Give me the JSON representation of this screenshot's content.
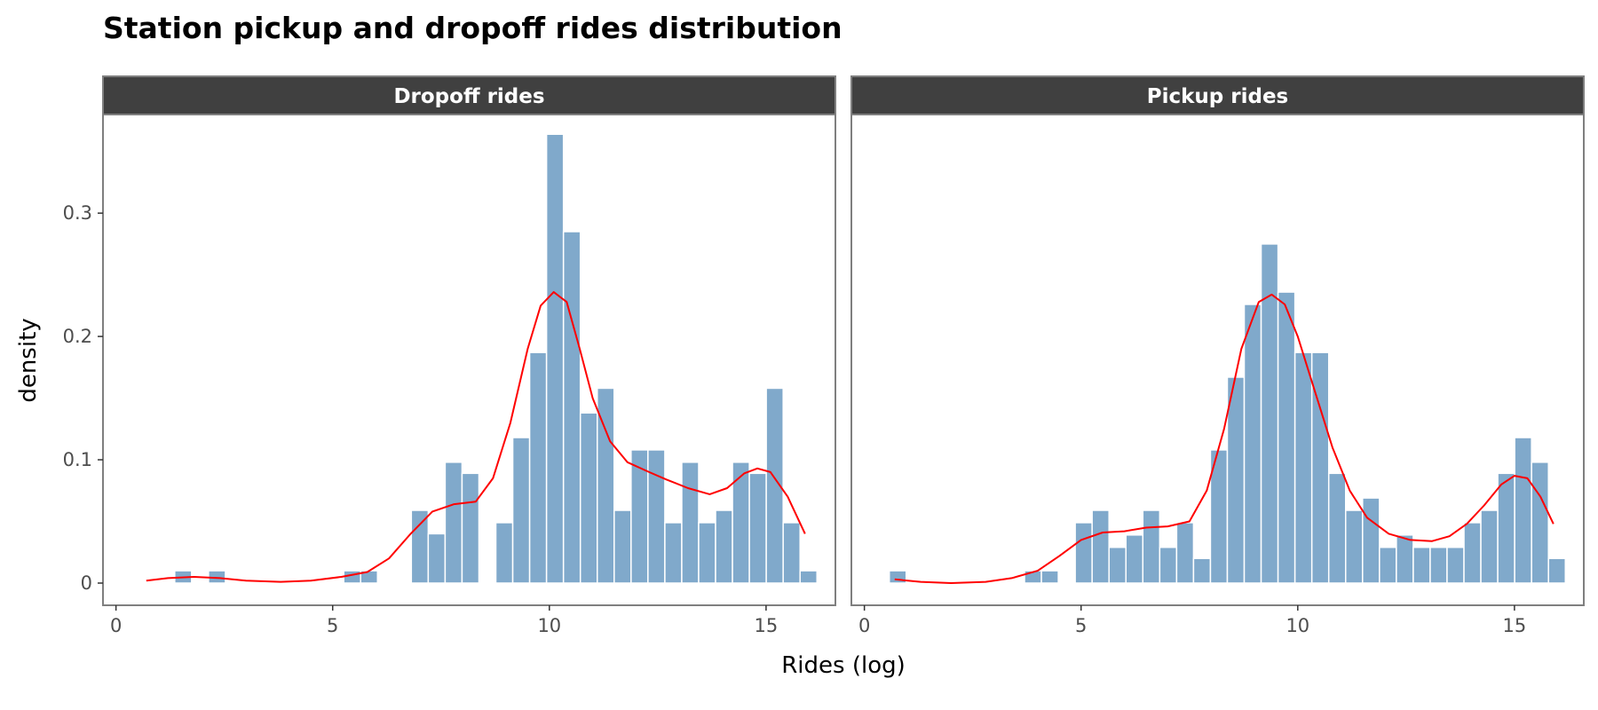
{
  "title": "Station pickup and dropoff rides distribution",
  "colors": {
    "bar_fill": "#80a9cb",
    "bar_stroke": "#ffffff",
    "density_line": "#ff0000",
    "strip_fill": "#404040",
    "strip_text": "#ffffff",
    "panel_border": "#7f7f7f"
  },
  "chart_data": {
    "type": "bar",
    "subtype": "histogram-with-density-facets",
    "xlabel": "Rides (log)",
    "ylabel": "density",
    "xlim": [
      -0.3,
      16.6
    ],
    "ylim": [
      -0.018,
      0.38
    ],
    "x_ticks": [
      0,
      5,
      10,
      15
    ],
    "x_tick_labels": [
      "0",
      "5",
      "10",
      "15"
    ],
    "y_ticks": [
      0,
      0.1,
      0.2,
      0.3
    ],
    "y_tick_labels": [
      "0",
      "0.1",
      "0.2",
      "0.3"
    ],
    "grid": false,
    "bin_width": 0.39,
    "facets": [
      {
        "label": "Dropoff rides",
        "bins": [
          {
            "x": 1.55,
            "density": 0.01
          },
          {
            "x": 2.33,
            "density": 0.01
          },
          {
            "x": 5.45,
            "density": 0.01
          },
          {
            "x": 5.84,
            "density": 0.01
          },
          {
            "x": 7.01,
            "density": 0.059
          },
          {
            "x": 7.4,
            "density": 0.04
          },
          {
            "x": 7.79,
            "density": 0.098
          },
          {
            "x": 8.18,
            "density": 0.089
          },
          {
            "x": 8.96,
            "density": 0.049
          },
          {
            "x": 9.35,
            "density": 0.118
          },
          {
            "x": 9.74,
            "density": 0.187
          },
          {
            "x": 10.13,
            "density": 0.364
          },
          {
            "x": 10.52,
            "density": 0.285
          },
          {
            "x": 10.91,
            "density": 0.138
          },
          {
            "x": 11.3,
            "density": 0.158
          },
          {
            "x": 11.69,
            "density": 0.059
          },
          {
            "x": 12.08,
            "density": 0.108
          },
          {
            "x": 12.47,
            "density": 0.108
          },
          {
            "x": 12.86,
            "density": 0.049
          },
          {
            "x": 13.25,
            "density": 0.098
          },
          {
            "x": 13.64,
            "density": 0.049
          },
          {
            "x": 14.03,
            "density": 0.059
          },
          {
            "x": 14.42,
            "density": 0.098
          },
          {
            "x": 14.81,
            "density": 0.089
          },
          {
            "x": 15.2,
            "density": 0.158
          },
          {
            "x": 15.59,
            "density": 0.049
          },
          {
            "x": 15.98,
            "density": 0.01
          }
        ],
        "density_curve": [
          [
            0.7,
            0.002
          ],
          [
            1.2,
            0.004
          ],
          [
            1.8,
            0.005
          ],
          [
            2.4,
            0.004
          ],
          [
            3.0,
            0.002
          ],
          [
            3.8,
            0.001
          ],
          [
            4.5,
            0.002
          ],
          [
            5.2,
            0.005
          ],
          [
            5.8,
            0.009
          ],
          [
            6.3,
            0.02
          ],
          [
            6.8,
            0.04
          ],
          [
            7.3,
            0.058
          ],
          [
            7.8,
            0.064
          ],
          [
            8.3,
            0.066
          ],
          [
            8.7,
            0.085
          ],
          [
            9.1,
            0.13
          ],
          [
            9.5,
            0.19
          ],
          [
            9.8,
            0.225
          ],
          [
            10.1,
            0.236
          ],
          [
            10.4,
            0.228
          ],
          [
            10.7,
            0.19
          ],
          [
            11.0,
            0.15
          ],
          [
            11.4,
            0.115
          ],
          [
            11.8,
            0.098
          ],
          [
            12.3,
            0.09
          ],
          [
            12.7,
            0.084
          ],
          [
            13.2,
            0.077
          ],
          [
            13.7,
            0.072
          ],
          [
            14.1,
            0.077
          ],
          [
            14.5,
            0.089
          ],
          [
            14.8,
            0.093
          ],
          [
            15.1,
            0.09
          ],
          [
            15.5,
            0.07
          ],
          [
            15.9,
            0.04
          ]
        ]
      },
      {
        "label": "Pickup rides",
        "bins": [
          {
            "x": 0.77,
            "density": 0.01
          },
          {
            "x": 3.89,
            "density": 0.01
          },
          {
            "x": 4.28,
            "density": 0.01
          },
          {
            "x": 5.06,
            "density": 0.049
          },
          {
            "x": 5.45,
            "density": 0.059
          },
          {
            "x": 5.84,
            "density": 0.029
          },
          {
            "x": 6.23,
            "density": 0.039
          },
          {
            "x": 6.62,
            "density": 0.059
          },
          {
            "x": 7.01,
            "density": 0.029
          },
          {
            "x": 7.4,
            "density": 0.049
          },
          {
            "x": 7.79,
            "density": 0.02
          },
          {
            "x": 8.18,
            "density": 0.108
          },
          {
            "x": 8.57,
            "density": 0.167
          },
          {
            "x": 8.96,
            "density": 0.226
          },
          {
            "x": 9.35,
            "density": 0.275
          },
          {
            "x": 9.74,
            "density": 0.236
          },
          {
            "x": 10.13,
            "density": 0.187
          },
          {
            "x": 10.52,
            "density": 0.187
          },
          {
            "x": 10.91,
            "density": 0.089
          },
          {
            "x": 11.3,
            "density": 0.059
          },
          {
            "x": 11.69,
            "density": 0.069
          },
          {
            "x": 12.08,
            "density": 0.029
          },
          {
            "x": 12.47,
            "density": 0.039
          },
          {
            "x": 12.86,
            "density": 0.029
          },
          {
            "x": 13.25,
            "density": 0.029
          },
          {
            "x": 13.64,
            "density": 0.029
          },
          {
            "x": 14.03,
            "density": 0.049
          },
          {
            "x": 14.42,
            "density": 0.059
          },
          {
            "x": 14.81,
            "density": 0.089
          },
          {
            "x": 15.2,
            "density": 0.118
          },
          {
            "x": 15.59,
            "density": 0.098
          },
          {
            "x": 15.98,
            "density": 0.02
          }
        ],
        "density_curve": [
          [
            0.7,
            0.003
          ],
          [
            1.3,
            0.001
          ],
          [
            2.0,
            0.0
          ],
          [
            2.8,
            0.001
          ],
          [
            3.4,
            0.004
          ],
          [
            4.0,
            0.01
          ],
          [
            4.5,
            0.022
          ],
          [
            5.0,
            0.035
          ],
          [
            5.5,
            0.041
          ],
          [
            6.0,
            0.042
          ],
          [
            6.5,
            0.045
          ],
          [
            7.0,
            0.046
          ],
          [
            7.5,
            0.05
          ],
          [
            7.9,
            0.075
          ],
          [
            8.3,
            0.125
          ],
          [
            8.7,
            0.19
          ],
          [
            9.1,
            0.228
          ],
          [
            9.4,
            0.234
          ],
          [
            9.7,
            0.226
          ],
          [
            10.0,
            0.2
          ],
          [
            10.4,
            0.155
          ],
          [
            10.8,
            0.11
          ],
          [
            11.2,
            0.075
          ],
          [
            11.6,
            0.053
          ],
          [
            12.1,
            0.04
          ],
          [
            12.6,
            0.035
          ],
          [
            13.1,
            0.034
          ],
          [
            13.5,
            0.038
          ],
          [
            13.9,
            0.048
          ],
          [
            14.3,
            0.063
          ],
          [
            14.7,
            0.08
          ],
          [
            15.0,
            0.087
          ],
          [
            15.3,
            0.085
          ],
          [
            15.6,
            0.07
          ],
          [
            15.9,
            0.048
          ]
        ]
      }
    ]
  }
}
